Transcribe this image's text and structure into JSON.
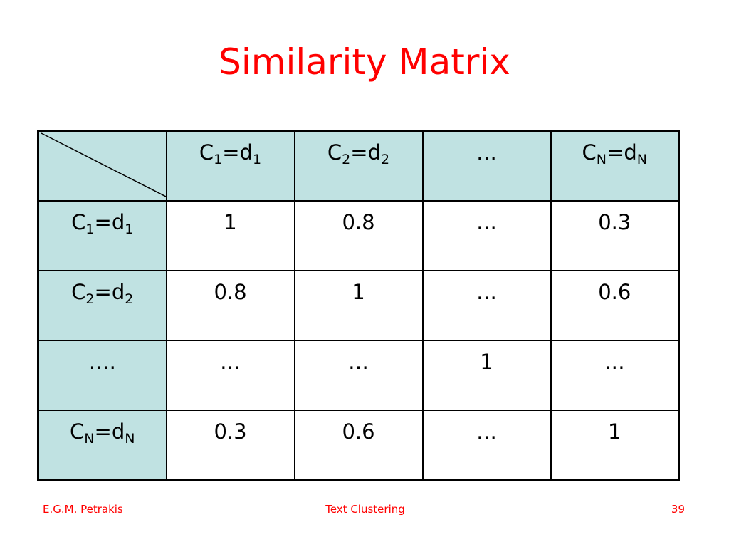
{
  "title": "Similarity Matrix",
  "table": {
    "header": [
      [
        {
          "text": "C"
        },
        {
          "text": "1",
          "sub": true
        },
        {
          "text": "=d"
        },
        {
          "text": "1",
          "sub": true
        }
      ],
      [
        {
          "text": "C"
        },
        {
          "text": "2",
          "sub": true
        },
        {
          "text": "=d"
        },
        {
          "text": "2",
          "sub": true
        }
      ],
      "…",
      [
        {
          "text": "C"
        },
        {
          "text": "N",
          "sub": true
        },
        {
          "text": "=d"
        },
        {
          "text": "N",
          "sub": true
        }
      ]
    ],
    "rows": [
      {
        "label": [
          {
            "text": "C"
          },
          {
            "text": "1",
            "sub": true
          },
          {
            "text": "=d"
          },
          {
            "text": "1",
            "sub": true
          }
        ],
        "cells": [
          1,
          0.8,
          "…",
          0.3
        ]
      },
      {
        "label": [
          {
            "text": "C"
          },
          {
            "text": "2",
            "sub": true
          },
          {
            "text": "=d"
          },
          {
            "text": "2",
            "sub": true
          }
        ],
        "cells": [
          0.8,
          1,
          "…",
          0.6
        ]
      },
      {
        "label": "….",
        "cells": [
          "…",
          "…",
          1,
          "…"
        ]
      },
      {
        "label": [
          {
            "text": "C"
          },
          {
            "text": "N",
            "sub": true
          },
          {
            "text": "=d"
          },
          {
            "text": "N",
            "sub": true
          }
        ],
        "cells": [
          0.3,
          0.6,
          "…",
          1
        ]
      }
    ]
  },
  "footer": {
    "left": "E.G.M. Petrakis",
    "center": "Text Clustering",
    "right": 39
  }
}
